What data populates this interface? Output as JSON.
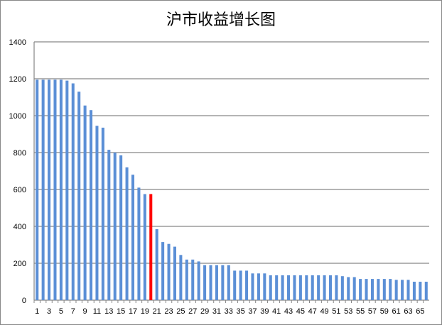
{
  "chart_data": {
    "type": "bar",
    "title": "沪市收益增长图",
    "xlabel": "",
    "ylabel": "",
    "ylim": [
      0,
      1400
    ],
    "yticks": [
      0,
      200,
      400,
      600,
      800,
      1000,
      1200,
      1400
    ],
    "grid": true,
    "legend": null,
    "categories": [
      1,
      2,
      3,
      4,
      5,
      6,
      7,
      8,
      9,
      10,
      11,
      12,
      13,
      14,
      15,
      16,
      17,
      18,
      19,
      20,
      21,
      22,
      23,
      24,
      25,
      26,
      27,
      28,
      29,
      30,
      31,
      32,
      33,
      34,
      35,
      36,
      37,
      38,
      39,
      40,
      41,
      42,
      43,
      44,
      45,
      46,
      47,
      48,
      49,
      50,
      51,
      52,
      53,
      54,
      55,
      56,
      57,
      58,
      59,
      60,
      61,
      62,
      63,
      64,
      65,
      66
    ],
    "xtick_labels": [
      "1",
      "3",
      "5",
      "7",
      "9",
      "11",
      "13",
      "15",
      "17",
      "19",
      "21",
      "23",
      "25",
      "27",
      "29",
      "31",
      "33",
      "35",
      "37",
      "39",
      "41",
      "43",
      "45",
      "47",
      "49",
      "51",
      "53",
      "55",
      "57",
      "59",
      "61",
      "63",
      "65"
    ],
    "values": [
      1195,
      1195,
      1195,
      1195,
      1195,
      1190,
      1175,
      1130,
      1055,
      1030,
      945,
      935,
      815,
      800,
      785,
      720,
      680,
      610,
      575,
      575,
      385,
      315,
      305,
      290,
      245,
      220,
      220,
      210,
      190,
      190,
      190,
      190,
      190,
      160,
      160,
      160,
      145,
      145,
      145,
      135,
      135,
      135,
      135,
      135,
      135,
      135,
      135,
      135,
      135,
      135,
      135,
      130,
      125,
      125,
      115,
      115,
      115,
      115,
      115,
      115,
      110,
      110,
      110,
      100,
      100,
      100
    ],
    "highlight_index": 19,
    "colors": {
      "bar": "#5B8FD6",
      "highlight": "#FF0000",
      "grid": "#868686"
    }
  }
}
